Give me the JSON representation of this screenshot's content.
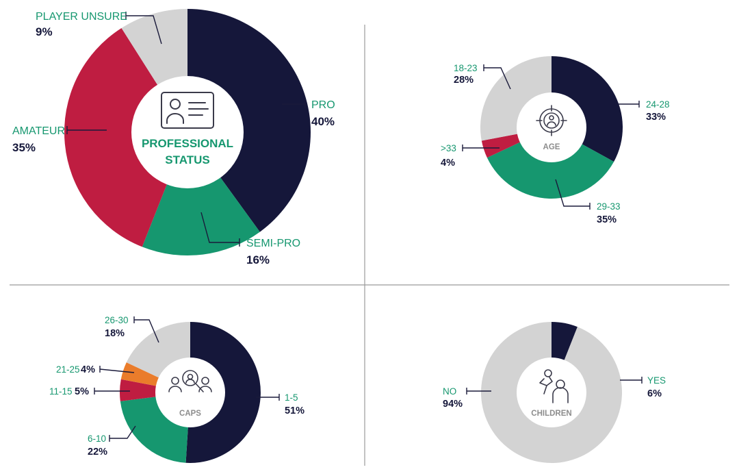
{
  "colors": {
    "navy": "#15173a",
    "green": "#16976f",
    "crimson": "#bf1d41",
    "grey": "#d3d3d3",
    "orange": "#ea7c2b"
  },
  "chart_data": [
    {
      "type": "pie",
      "center_label": [
        "PROFESSIONAL",
        "STATUS"
      ],
      "icon": "id-card-icon",
      "slices": [
        {
          "key": "pro",
          "label": "PRO",
          "value": 40,
          "display": "40%",
          "color": "#15173a"
        },
        {
          "key": "semi_pro",
          "label": "SEMI-PRO",
          "value": 16,
          "display": "16%",
          "color": "#16976f"
        },
        {
          "key": "amateur",
          "label": "AMATEUR",
          "value": 35,
          "display": "35%",
          "color": "#bf1d41"
        },
        {
          "key": "player_unsure",
          "label": "PLAYER UNSURE",
          "value": 9,
          "display": "9%",
          "color": "#d3d3d3"
        }
      ]
    },
    {
      "type": "pie",
      "center_label": [
        "AGE"
      ],
      "icon": "target-person-icon",
      "slices": [
        {
          "key": "age_24_28",
          "label": "24-28",
          "value": 33,
          "display": "33%",
          "color": "#15173a"
        },
        {
          "key": "age_29_33",
          "label": "29-33",
          "value": 35,
          "display": "35%",
          "color": "#16976f"
        },
        {
          "key": "age_over_33",
          "label": ">33",
          "value": 4,
          "display": "4%",
          "color": "#bf1d41"
        },
        {
          "key": "age_18_23",
          "label": "18-23",
          "value": 28,
          "display": "28%",
          "color": "#d3d3d3"
        }
      ]
    },
    {
      "type": "pie",
      "center_label": [
        "CAPS"
      ],
      "icon": "search-people-icon",
      "slices": [
        {
          "key": "caps_1_5",
          "label": "1-5",
          "value": 51,
          "display": "51%",
          "color": "#15173a"
        },
        {
          "key": "caps_6_10",
          "label": "6-10",
          "value": 22,
          "display": "22%",
          "color": "#16976f"
        },
        {
          "key": "caps_11_15",
          "label": "11-15",
          "value": 5,
          "display": "5%",
          "color": "#bf1d41"
        },
        {
          "key": "caps_21_25",
          "label": "21-25",
          "value": 4,
          "display": "4%",
          "color": "#ea7c2b"
        },
        {
          "key": "caps_26_30",
          "label": "26-30",
          "value": 18,
          "display": "18%",
          "color": "#d3d3d3"
        }
      ]
    },
    {
      "type": "pie",
      "center_label": [
        "CHILDREN"
      ],
      "icon": "parent-child-icon",
      "slices": [
        {
          "key": "children_yes",
          "label": "YES",
          "value": 6,
          "display": "6%",
          "color": "#15173a"
        },
        {
          "key": "children_no",
          "label": "NO",
          "value": 94,
          "display": "94%",
          "color": "#d3d3d3"
        }
      ]
    }
  ]
}
